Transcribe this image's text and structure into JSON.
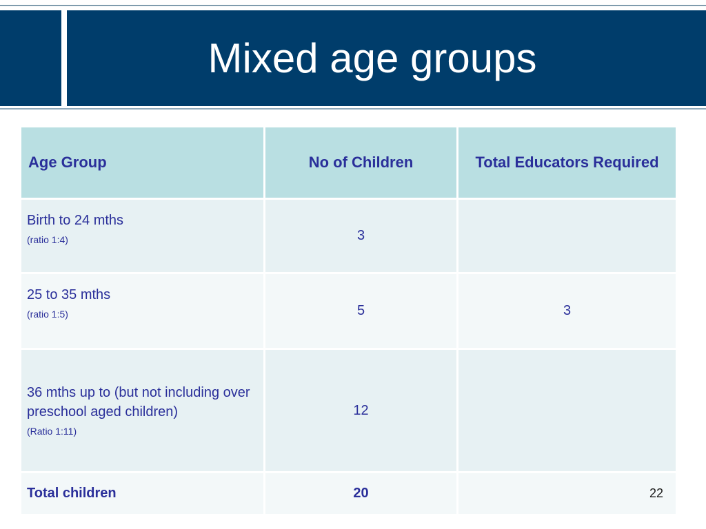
{
  "slide": {
    "title": "Mixed age groups",
    "page_number": "22"
  },
  "colors": {
    "header_band": "#003d6b",
    "table_header": "#b9dfe2",
    "row_shade_a": "#e7f1f3",
    "row_shade_b": "#f3f8f9",
    "table_text": "#2a2f9a"
  },
  "table": {
    "headers": {
      "age_group": "Age Group",
      "no_of_children": "No of Children",
      "total_educators": "Total Educators Required"
    },
    "rows": [
      {
        "age_group": "Birth to 24 mths",
        "ratio": "(ratio 1:4)",
        "children": "3",
        "educators": ""
      },
      {
        "age_group": "25 to 35 mths",
        "ratio": "(ratio 1:5)",
        "children": "5",
        "educators": "3"
      },
      {
        "age_group": "36 mths up to (but not including over preschool aged children)",
        "ratio": "(Ratio 1:11)",
        "children": "12",
        "educators": ""
      }
    ],
    "total": {
      "label": "Total children",
      "children": "20",
      "educators": ""
    }
  }
}
